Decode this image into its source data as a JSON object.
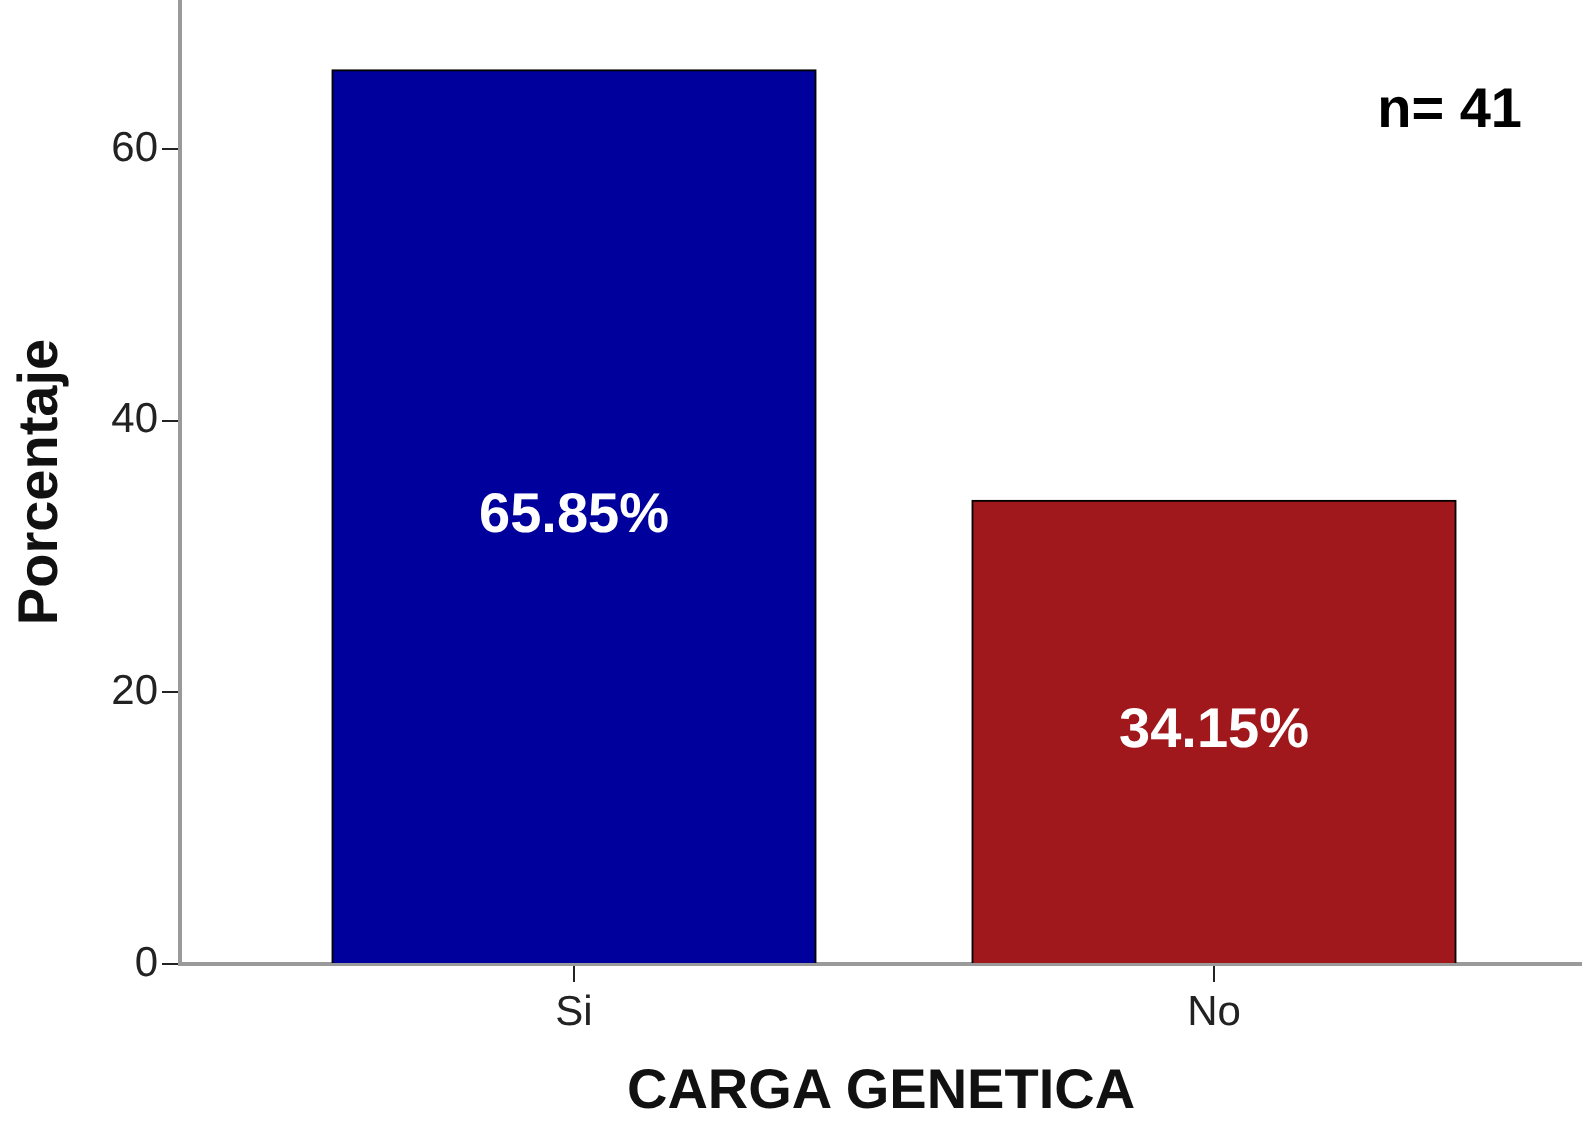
{
  "chart_data": {
    "type": "bar",
    "categories": [
      "Si",
      "No"
    ],
    "values": [
      65.85,
      34.15
    ],
    "colors": [
      "#00009c",
      "#a0181b"
    ],
    "value_labels": [
      "65.85%",
      "34.15%"
    ],
    "xlabel": "CARGA GENETICA",
    "ylabel": "Porcentaje",
    "ylim": [
      0,
      71
    ],
    "yticks": [
      0,
      20,
      40,
      60
    ],
    "annotations": [
      "n= 41"
    ]
  }
}
